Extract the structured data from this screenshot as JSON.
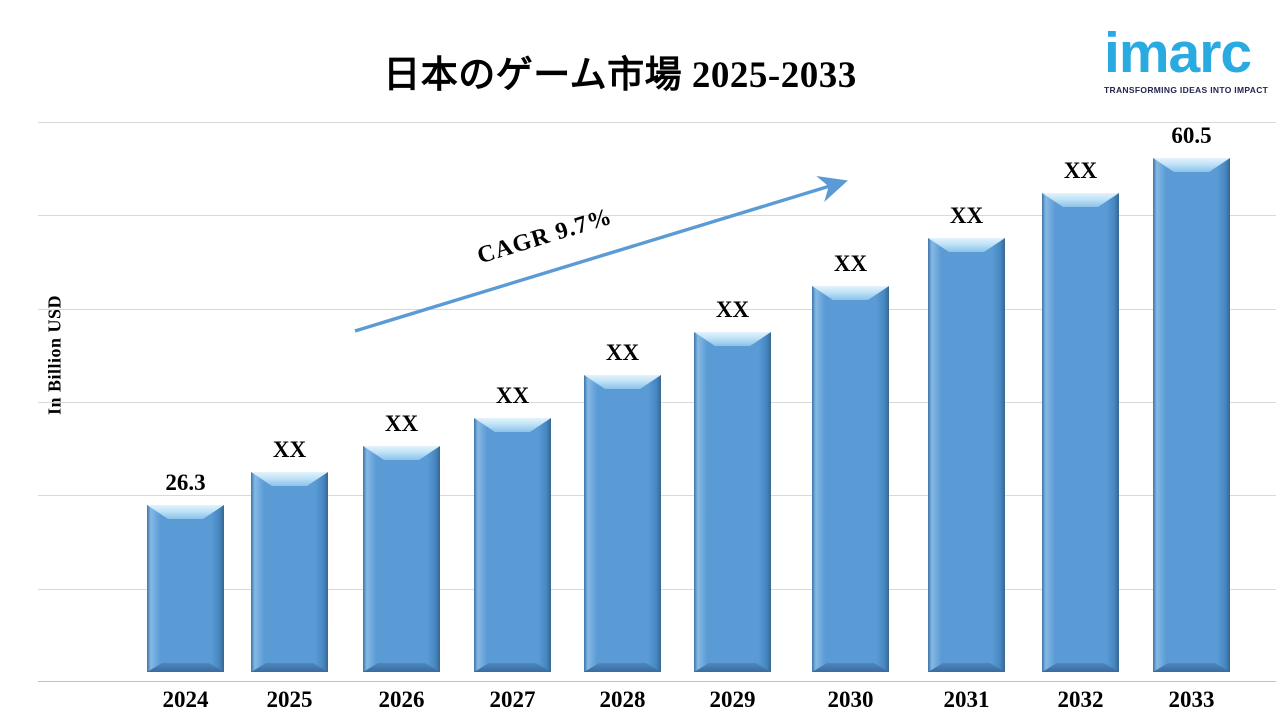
{
  "header": {
    "title": "日本のゲーム市場 2025-2033"
  },
  "logo": {
    "brand": "imarc",
    "tagline": "TRANSFORMING IDEAS INTO IMPACT",
    "brand_color": "#29abe2",
    "tagline_color": "#23254f"
  },
  "chart_data": {
    "type": "bar",
    "title": "日本のゲーム市場 2025-2033",
    "ylabel": "In Billion USD",
    "xlabel": "",
    "categories": [
      "2024",
      "2025",
      "2026",
      "2027",
      "2028",
      "2029",
      "2030",
      "2031",
      "2032",
      "2033"
    ],
    "value_labels": [
      "26.3",
      "XX",
      "XX",
      "XX",
      "XX",
      "XX",
      "XX",
      "XX",
      "XX",
      "60.5"
    ],
    "known_values": {
      "2024": 26.3,
      "2033": 60.5
    },
    "estimated_values": [
      26.3,
      29.55,
      32.1,
      34.85,
      39.1,
      43.35,
      47.9,
      52.6,
      57.05,
      60.5
    ],
    "unit": "Billion USD",
    "annotation": {
      "label": "CAGR 9.7%"
    },
    "grid": true,
    "legend": false,
    "gridline_color": "#d9d9d9",
    "bar_color": "#5b9bd5",
    "bar_highlight": "#bfe2f7",
    "bar_shadow": "#3a6b9e",
    "arrow_color": "#5b9bd5"
  }
}
